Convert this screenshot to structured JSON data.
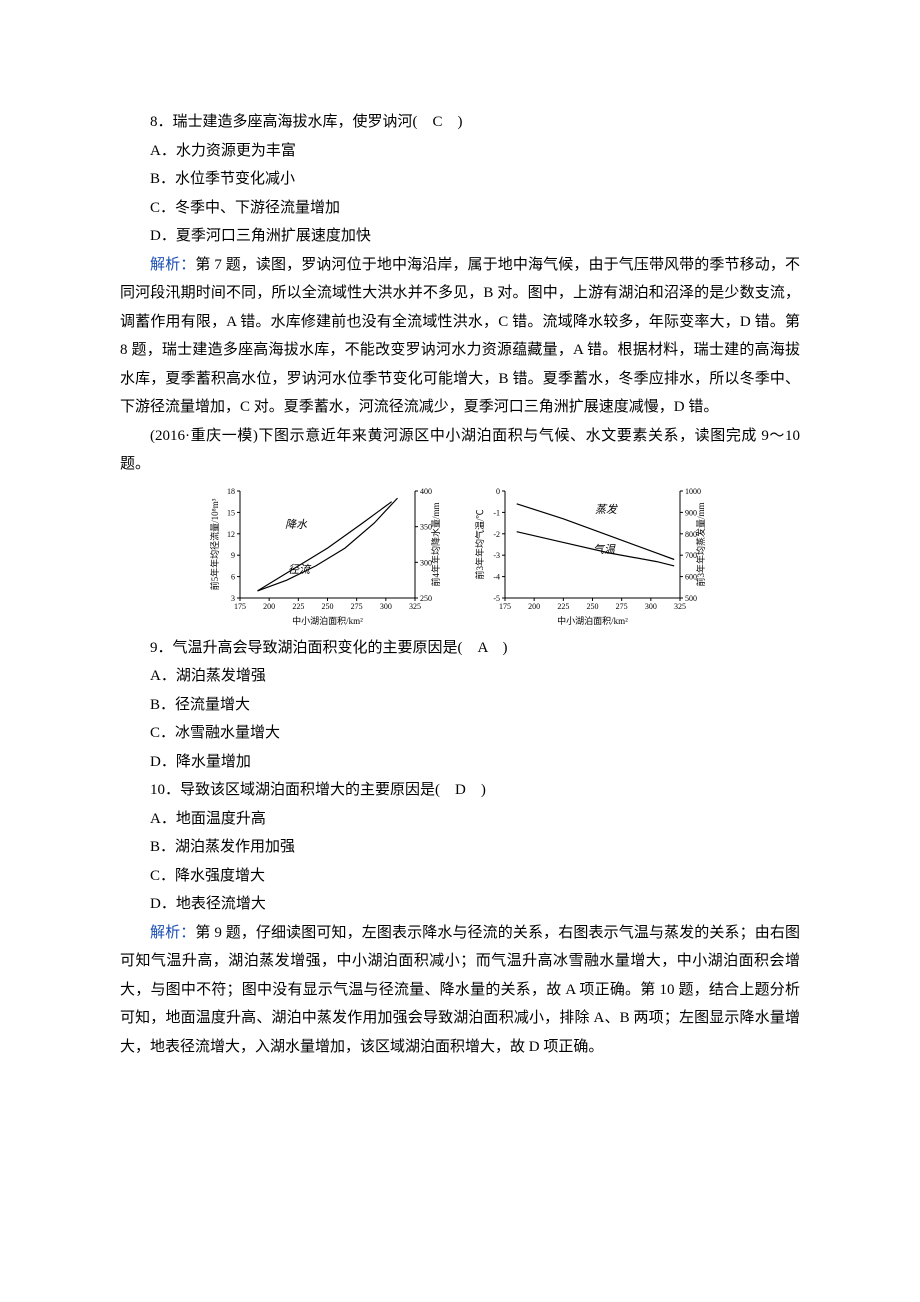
{
  "q8": {
    "stem_prefix": "8．瑞士建造多座高海拔水库，使罗讷河(　",
    "answer": "C",
    "stem_suffix": "　)",
    "options": {
      "A": "A．水力资源更为丰富",
      "B": "B．水位季节变化减小",
      "C": "C．冬季中、下游径流量增加",
      "D": "D．夏季河口三角洲扩展速度加快"
    }
  },
  "analysis7_8": {
    "label": "解析：",
    "text": "第 7 题，读图，罗讷河位于地中海沿岸，属于地中海气候，由于气压带风带的季节移动，不同河段汛期时间不同，所以全流域性大洪水并不多见，B 对。图中，上游有湖泊和沼泽的是少数支流，调蓄作用有限，A 错。水库修建前也没有全流域性洪水，C 错。流域降水较多，年际变率大，D 错。第 8 题，瑞士建造多座高海拔水库，不能改变罗讷河水力资源蕴藏量，A 错。根据材料，瑞士建的高海拔水库，夏季蓄积高水位，罗讷河水位季节变化可能增大，B 错。夏季蓄水，冬季应排水，所以冬季中、下游径流量增加，C 对。夏季蓄水，河流径流减少，夏季河口三角洲扩展速度减慢，D 错。"
  },
  "intro9_10": "(2016·重庆一模)下图示意近年来黄河源区中小湖泊面积与气候、水文要素关系，读图完成 9～10 题。",
  "chart_left": {
    "x_label": "中小湖泊面积/km²",
    "y_left_label": "前5年年均径流量/10⁸m³",
    "y_right_label": "前4年年均降水量/mm",
    "x_ticks": [
      175,
      200,
      225,
      250,
      275,
      300,
      325
    ],
    "y_left_ticks": [
      3,
      6,
      9,
      12,
      15,
      18
    ],
    "y_right_ticks": [
      250,
      300,
      350,
      400
    ],
    "series": [
      {
        "name": "降水",
        "label": "降水",
        "points": [
          [
            190,
            260
          ],
          [
            220,
            290
          ],
          [
            250,
            320
          ],
          [
            280,
            355
          ],
          [
            305,
            385
          ]
        ],
        "color": "#000000",
        "width": 1.2
      },
      {
        "name": "径流",
        "label": "径流",
        "points": [
          [
            190,
            4.0
          ],
          [
            215,
            5.5
          ],
          [
            240,
            7.5
          ],
          [
            265,
            10.0
          ],
          [
            290,
            13.5
          ],
          [
            310,
            17.0
          ]
        ],
        "color": "#000000",
        "width": 1.2
      }
    ],
    "fontsize_axis": 8,
    "fontsize_label": 9,
    "background": "#ffffff",
    "axis_color": "#000000"
  },
  "chart_right": {
    "x_label": "中小湖泊面积/km²",
    "y_left_label": "前3年年均气温/℃",
    "y_right_label": "前3年年均蒸发量/mm",
    "x_ticks": [
      175,
      200,
      225,
      250,
      275,
      300,
      325
    ],
    "y_left_ticks": [
      -5,
      -4,
      -3,
      -2,
      -1,
      0
    ],
    "y_right_ticks": [
      500,
      600,
      700,
      800,
      900,
      1000
    ],
    "series": [
      {
        "name": "蒸发",
        "label": "蒸发",
        "points": [
          [
            185,
            940
          ],
          [
            225,
            870
          ],
          [
            265,
            790
          ],
          [
            305,
            710
          ],
          [
            320,
            680
          ]
        ],
        "color": "#000000",
        "width": 1.2
      },
      {
        "name": "气温",
        "label": "气温",
        "points": [
          [
            185,
            -1.9
          ],
          [
            225,
            -2.4
          ],
          [
            265,
            -2.9
          ],
          [
            305,
            -3.3
          ],
          [
            320,
            -3.5
          ]
        ],
        "color": "#000000",
        "width": 1.2
      }
    ],
    "fontsize_axis": 8,
    "fontsize_label": 9,
    "background": "#ffffff",
    "axis_color": "#000000"
  },
  "q9": {
    "stem_prefix": "9．气温升高会导致湖泊面积变化的主要原因是(　",
    "answer": "A",
    "stem_suffix": "　)",
    "options": {
      "A": "A．湖泊蒸发增强",
      "B": "B．径流量增大",
      "C": "C．冰雪融水量增大",
      "D": "D．降水量增加"
    }
  },
  "q10": {
    "stem_prefix": "10．导致该区域湖泊面积增大的主要原因是(　",
    "answer": "D",
    "stem_suffix": "　)",
    "options": {
      "A": "A．地面温度升高",
      "B": "B．湖泊蒸发作用加强",
      "C": "C．降水强度增大",
      "D": "D．地表径流增大"
    }
  },
  "analysis9_10": {
    "label": "解析：",
    "text": "第 9 题，仔细读图可知，左图表示降水与径流的关系，右图表示气温与蒸发的关系；由右图可知气温升高，湖泊蒸发增强，中小湖泊面积减小；而气温升高冰雪融水量增大，中小湖泊面积会增大，与图中不符；图中没有显示气温与径流量、降水量的关系，故 A 项正确。第 10 题，结合上题分析可知，地面温度升高、湖泊中蒸发作用加强会导致湖泊面积减小，排除 A、B 两项；左图显示降水量增大，地表径流增大，入湖水量增加，该区域湖泊面积增大，故 D 项正确。"
  }
}
